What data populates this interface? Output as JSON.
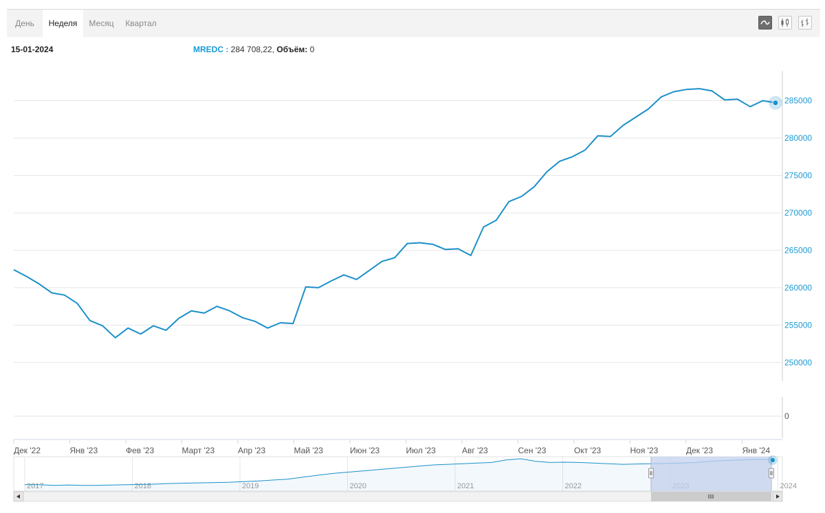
{
  "tabs": [
    {
      "label": "День",
      "active": false
    },
    {
      "label": "Неделя",
      "active": true
    },
    {
      "label": "Месяц",
      "active": false
    },
    {
      "label": "Квартал",
      "active": false
    }
  ],
  "tools": [
    {
      "icon": "line-chart-icon",
      "active": true
    },
    {
      "icon": "candlestick-icon",
      "active": false
    },
    {
      "icon": "ohlc-bars-icon",
      "active": false
    }
  ],
  "info": {
    "date": "15-01-2024",
    "ticker": "MREDC :",
    "value": "284 708,22,",
    "volume_label": "Объём:",
    "volume_value": "0"
  },
  "colors": {
    "line": "#1a8fc9",
    "axis_text": "#1a9ad6",
    "grid": "#e6e6e6",
    "navigator_mask": "#c3d0ee"
  },
  "chart_data": {
    "type": "line",
    "x_tick_labels": [
      "Дек '22",
      "Янв '23",
      "Фев '23",
      "Март '23",
      "Апр '23",
      "Май '23",
      "Июн '23",
      "Июл '23",
      "Авг '23",
      "Сен '23",
      "Окт '23",
      "Ноя '23",
      "Дек '23",
      "Янв '24"
    ],
    "y_ticks": [
      250000,
      255000,
      260000,
      265000,
      270000,
      275000,
      280000,
      285000
    ],
    "y_ticks_lower": [
      0
    ],
    "ylim": [
      247500,
      289000
    ],
    "series": [
      {
        "values": [
          262400,
          261500,
          260500,
          259300,
          259000,
          257900,
          255600,
          254900,
          253300,
          254600,
          253800,
          254900,
          254300,
          255900,
          256900,
          256600,
          257500,
          256900,
          256000,
          255500,
          254600,
          255300,
          255200,
          260100,
          260000,
          260900,
          261700,
          261100,
          262300,
          263500,
          264000,
          265900,
          266000,
          265800,
          265100,
          265200,
          264300,
          268100,
          269000,
          271500,
          272200,
          273500,
          275500,
          276900,
          277500,
          278400,
          280300,
          280200,
          281700,
          282800,
          283900,
          285500,
          286200,
          286500,
          286600,
          286300,
          285100,
          285200,
          284200,
          285000,
          284708
        ]
      }
    ],
    "last_point": {
      "date": "15-01-2024",
      "value": 284708.22
    },
    "navigator": {
      "year_labels": [
        "2017",
        "2018",
        "2019",
        "2020",
        "2021",
        "2022",
        "2023",
        "2024"
      ],
      "values": [
        8,
        8,
        7,
        7.5,
        7,
        7,
        7.5,
        8,
        8.5,
        9,
        10,
        10.5,
        11,
        11.5,
        12,
        13,
        14,
        15.5,
        17,
        20,
        23,
        26,
        28,
        30,
        32,
        34,
        36,
        38,
        40,
        41,
        42,
        43,
        44,
        48,
        50,
        46,
        44,
        44.5,
        44,
        43,
        42,
        41,
        41.5,
        42,
        42.5,
        43,
        44,
        46,
        47,
        48,
        49,
        49
      ]
    }
  }
}
